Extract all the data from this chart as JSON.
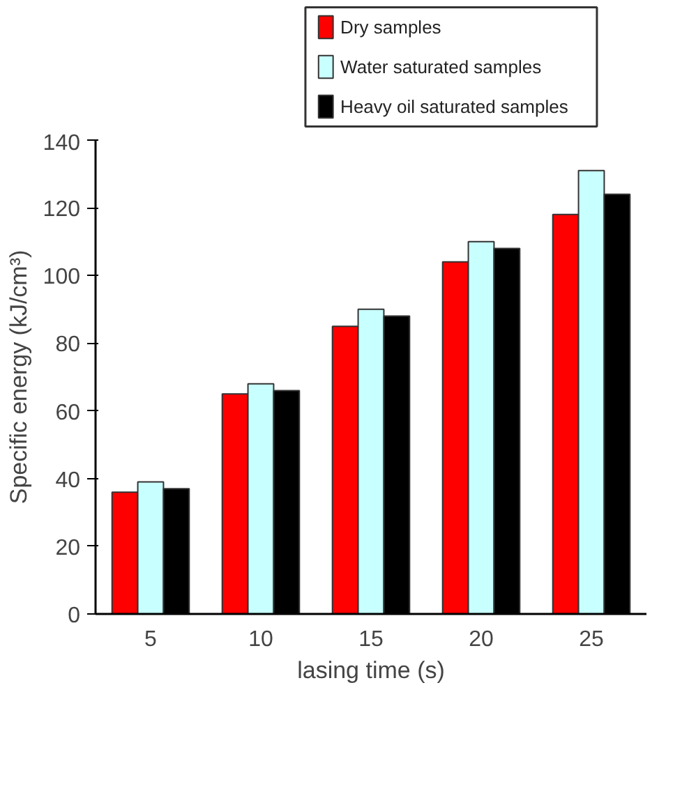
{
  "chart_data": {
    "type": "bar",
    "xlabel": "lasing time (s)",
    "ylabel": "Specific energy (kJ/cm³)",
    "categories": [
      "5",
      "10",
      "15",
      "20",
      "25"
    ],
    "series": [
      {
        "name": "Dry samples",
        "color": "#ff0000",
        "values": [
          36,
          65,
          85,
          104,
          118
        ]
      },
      {
        "name": "Water saturated samples",
        "color": "#c8ffff",
        "values": [
          39,
          68,
          90,
          110,
          131
        ]
      },
      {
        "name": "Heavy oil saturated samples",
        "color": "#000000",
        "values": [
          37,
          66,
          88,
          108,
          124
        ]
      }
    ],
    "ylim": [
      0,
      140
    ],
    "yticks": [
      0,
      20,
      40,
      60,
      80,
      100,
      120,
      140
    ],
    "grid": false,
    "legend": "top"
  }
}
